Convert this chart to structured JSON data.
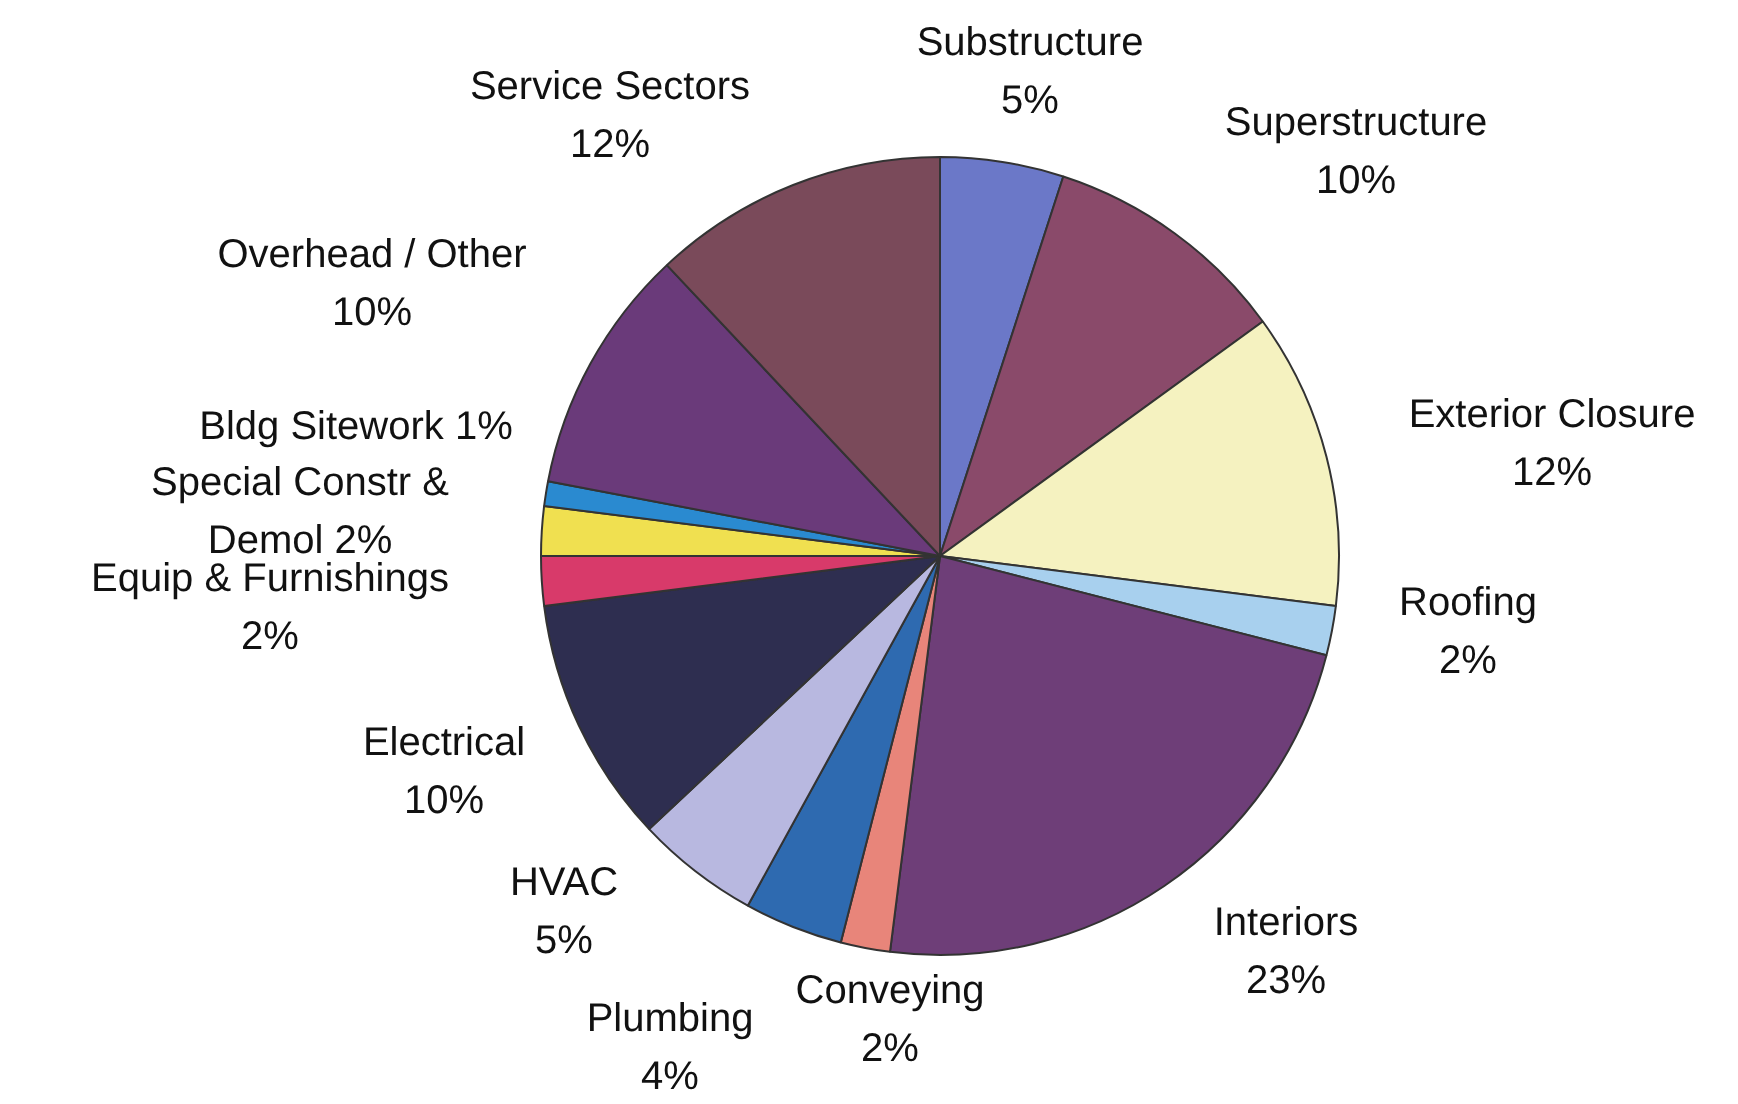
{
  "chart_data": {
    "type": "pie",
    "categories": [
      "Substructure",
      "Superstructure",
      "Exterior Closure",
      "Roofing",
      "Interiors",
      "Conveying",
      "Plumbing",
      "HVAC",
      "Electrical",
      "Equip & Furnishings",
      "Special Constr & Demol",
      "Bldg Sitework",
      "Overhead / Other",
      "Service Sectors"
    ],
    "values": [
      5,
      10,
      12,
      2,
      23,
      2,
      4,
      5,
      10,
      2,
      2,
      1,
      10,
      12
    ],
    "value_labels": [
      "5%",
      "10%",
      "12%",
      "2%",
      "23%",
      "2%",
      "4%",
      "5%",
      "10%",
      "2%",
      "2%",
      "1%",
      "10%",
      "12%"
    ],
    "colors": [
      "#6b78c8",
      "#8a4a6a",
      "#f5f2c0",
      "#a8d0ee",
      "#6e3e78",
      "#e8857a",
      "#2e6ab0",
      "#b8b8e0",
      "#2e2e50",
      "#d83a6a",
      "#f0e050",
      "#2a8ad0",
      "#6a3a7a",
      "#7a4a5a"
    ],
    "legend": false
  }
}
